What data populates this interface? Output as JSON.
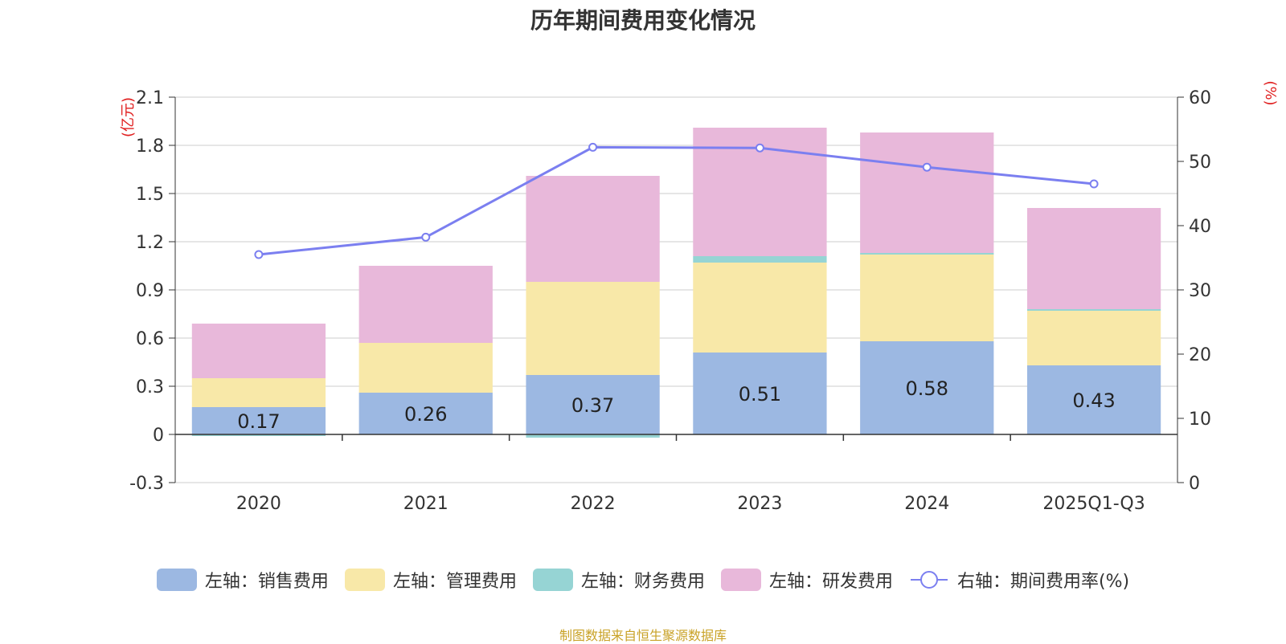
{
  "chart_data": {
    "type": "bar",
    "title": "历年期间费用变化情况",
    "categories": [
      "2020",
      "2021",
      "2022",
      "2023",
      "2024",
      "2025Q1-Q3"
    ],
    "series": [
      {
        "name": "左轴：销售费用",
        "axis": "left",
        "stacked": true,
        "color": "#9cb8e2",
        "values": [
          0.17,
          0.26,
          0.37,
          0.51,
          0.58,
          0.43
        ]
      },
      {
        "name": "左轴：管理费用",
        "axis": "left",
        "stacked": true,
        "color": "#f8e8a8",
        "values": [
          0.18,
          0.31,
          0.58,
          0.56,
          0.54,
          0.34
        ]
      },
      {
        "name": "左轴：财务费用",
        "axis": "left",
        "stacked": true,
        "color": "#96d4d4",
        "values": [
          -0.01,
          0.0,
          -0.02,
          0.04,
          0.01,
          0.01
        ]
      },
      {
        "name": "左轴：研发费用",
        "axis": "left",
        "stacked": true,
        "color": "#e8b8da",
        "values": [
          0.34,
          0.48,
          0.66,
          0.8,
          0.75,
          0.63
        ]
      },
      {
        "name": "右轴：期间费用率(%)",
        "axis": "right",
        "type": "line",
        "color": "#7b7ff0",
        "values": [
          35.5,
          38.2,
          52.2,
          52.1,
          49.1,
          46.5
        ]
      }
    ],
    "data_labels": [
      "0.17",
      "0.26",
      "0.37",
      "0.51",
      "0.58",
      "0.43"
    ],
    "y_left": {
      "label": "(亿元)",
      "ylim": [
        -0.3,
        2.1
      ],
      "ticks": [
        "-0.3",
        "0",
        "0.3",
        "0.6",
        "0.9",
        "1.2",
        "1.5",
        "1.8",
        "2.1"
      ]
    },
    "y_right": {
      "label": "(%)",
      "ylim": [
        0,
        60
      ],
      "ticks": [
        "0",
        "10",
        "20",
        "30",
        "40",
        "50",
        "60"
      ]
    },
    "grid": true,
    "legend_position": "bottom"
  },
  "source_note": "制图数据来自恒生聚源数据库"
}
